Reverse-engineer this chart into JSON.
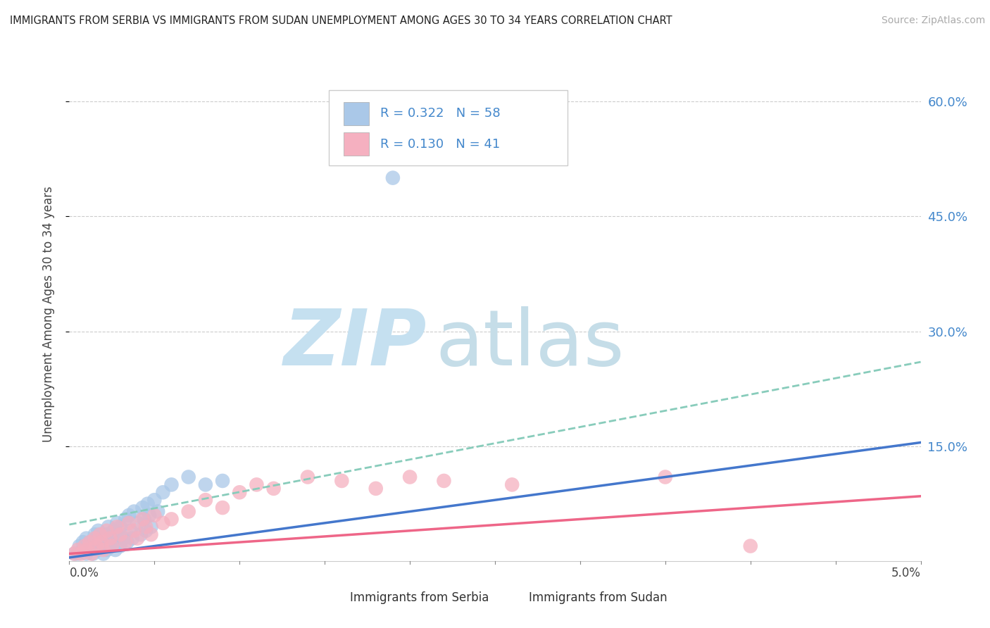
{
  "title": "IMMIGRANTS FROM SERBIA VS IMMIGRANTS FROM SUDAN UNEMPLOYMENT AMONG AGES 30 TO 34 YEARS CORRELATION CHART",
  "source": "Source: ZipAtlas.com",
  "ylabel": "Unemployment Among Ages 30 to 34 years",
  "ytick_labels": [
    "15.0%",
    "30.0%",
    "45.0%",
    "60.0%"
  ],
  "ytick_values": [
    0.15,
    0.3,
    0.45,
    0.6
  ],
  "xlim": [
    0.0,
    0.05
  ],
  "ylim": [
    -0.005,
    0.65
  ],
  "serbia_R": "0.322",
  "serbia_N": "58",
  "sudan_R": "0.130",
  "sudan_N": "41",
  "serbia_color": "#aac8e8",
  "sudan_color": "#f5b0c0",
  "serbia_line_color": "#4477cc",
  "sudan_line_color": "#ee6688",
  "dashed_line_color": "#88ccbb",
  "watermark_zip_color": "#c5e0f0",
  "watermark_atlas_color": "#c5dde8",
  "serbia_scatter_x": [
    0.0003,
    0.0005,
    0.0006,
    0.0008,
    0.0008,
    0.001,
    0.001,
    0.0012,
    0.0012,
    0.0013,
    0.0014,
    0.0015,
    0.0015,
    0.0016,
    0.0016,
    0.0017,
    0.0017,
    0.0018,
    0.0018,
    0.0019,
    0.002,
    0.002,
    0.0021,
    0.0022,
    0.0022,
    0.0023,
    0.0023,
    0.0024,
    0.0025,
    0.0026,
    0.0027,
    0.0028,
    0.0028,
    0.003,
    0.003,
    0.0032,
    0.0033,
    0.0034,
    0.0035,
    0.0036,
    0.0037,
    0.0038,
    0.004,
    0.0042,
    0.0043,
    0.0044,
    0.0045,
    0.0046,
    0.0047,
    0.0048,
    0.005,
    0.0052,
    0.0055,
    0.006,
    0.007,
    0.008,
    0.009,
    0.019
  ],
  "serbia_scatter_y": [
    0.01,
    0.01,
    0.02,
    0.015,
    0.025,
    0.01,
    0.03,
    0.015,
    0.025,
    0.02,
    0.01,
    0.025,
    0.035,
    0.02,
    0.03,
    0.015,
    0.04,
    0.025,
    0.035,
    0.02,
    0.01,
    0.03,
    0.025,
    0.015,
    0.035,
    0.02,
    0.045,
    0.03,
    0.025,
    0.04,
    0.015,
    0.05,
    0.035,
    0.02,
    0.045,
    0.03,
    0.055,
    0.025,
    0.06,
    0.04,
    0.03,
    0.065,
    0.05,
    0.035,
    0.07,
    0.055,
    0.04,
    0.075,
    0.06,
    0.045,
    0.08,
    0.065,
    0.09,
    0.1,
    0.11,
    0.1,
    0.105,
    0.5
  ],
  "sudan_scatter_x": [
    0.0003,
    0.0005,
    0.0007,
    0.0009,
    0.001,
    0.0012,
    0.0013,
    0.0015,
    0.0016,
    0.0018,
    0.0019,
    0.002,
    0.0022,
    0.0024,
    0.0025,
    0.0028,
    0.003,
    0.0033,
    0.0035,
    0.0038,
    0.004,
    0.0043,
    0.0045,
    0.0048,
    0.005,
    0.0055,
    0.006,
    0.007,
    0.008,
    0.009,
    0.01,
    0.011,
    0.012,
    0.014,
    0.016,
    0.018,
    0.02,
    0.022,
    0.026,
    0.035,
    0.04
  ],
  "sudan_scatter_y": [
    0.01,
    0.015,
    0.01,
    0.02,
    0.015,
    0.025,
    0.01,
    0.03,
    0.02,
    0.035,
    0.025,
    0.015,
    0.04,
    0.03,
    0.02,
    0.045,
    0.035,
    0.025,
    0.05,
    0.04,
    0.03,
    0.055,
    0.045,
    0.035,
    0.06,
    0.05,
    0.055,
    0.065,
    0.08,
    0.07,
    0.09,
    0.1,
    0.095,
    0.11,
    0.105,
    0.095,
    0.11,
    0.105,
    0.1,
    0.11,
    0.02
  ],
  "serbia_trend": [
    0.005,
    0.155
  ],
  "sudan_trend": [
    0.01,
    0.085
  ],
  "dashed_trend": [
    0.048,
    0.26
  ]
}
